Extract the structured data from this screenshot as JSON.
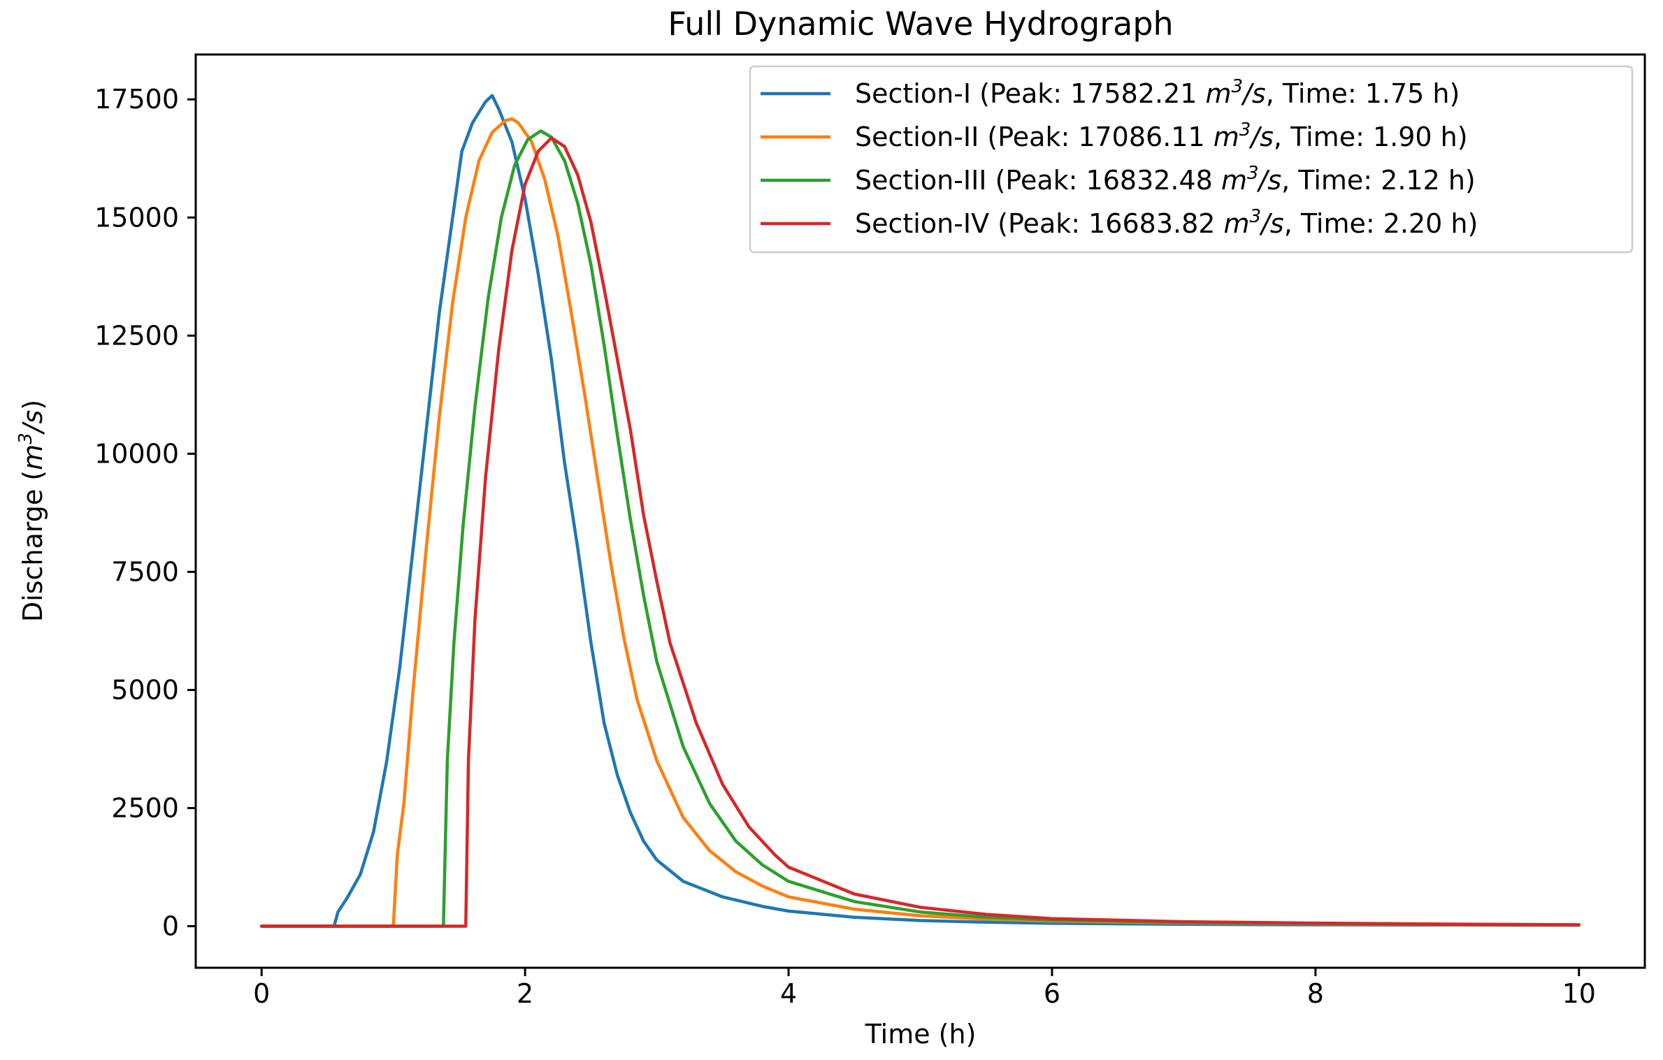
{
  "chart_data": {
    "type": "line",
    "title": "Full Dynamic Wave Hydrograph",
    "xlabel": "Time (h)",
    "ylabel_prefix": "Discharge (",
    "ylabel_unit_base": "m",
    "ylabel_unit_exp": "3",
    "ylabel_unit_tail": "/s",
    "ylabel_suffix": ")",
    "xlim": [
      -0.5,
      10.5
    ],
    "ylim": [
      -880,
      18450
    ],
    "xticks": [
      0,
      2,
      4,
      6,
      8,
      10
    ],
    "xtick_labels": [
      "0",
      "2",
      "4",
      "6",
      "8",
      "10"
    ],
    "yticks": [
      0,
      2500,
      5000,
      7500,
      10000,
      12500,
      15000,
      17500
    ],
    "ytick_labels": [
      "0",
      "2500",
      "5000",
      "7500",
      "10000",
      "12500",
      "15000",
      "17500"
    ],
    "grid": false,
    "legend_placement": "top-right",
    "series": [
      {
        "name": "Section-I (Peak: 17582.21 m³/s, Time: 1.75 h)",
        "legend_parts": {
          "pre": "Section-I (Peak: 17582.21 ",
          "m": "m",
          "exp": "3",
          "s": "/s",
          "post": ", Time: 1.75 h)"
        },
        "color": "#1f77b4",
        "points": [
          [
            0,
            0
          ],
          [
            0.55,
            0
          ],
          [
            0.58,
            300
          ],
          [
            0.65,
            600
          ],
          [
            0.75,
            1100
          ],
          [
            0.85,
            2000
          ],
          [
            0.95,
            3500
          ],
          [
            1.05,
            5500
          ],
          [
            1.15,
            8000
          ],
          [
            1.25,
            10500
          ],
          [
            1.35,
            13000
          ],
          [
            1.45,
            15000
          ],
          [
            1.52,
            16400
          ],
          [
            1.6,
            17000
          ],
          [
            1.7,
            17450
          ],
          [
            1.75,
            17582
          ],
          [
            1.8,
            17300
          ],
          [
            1.9,
            16600
          ],
          [
            2.0,
            15400
          ],
          [
            2.1,
            13800
          ],
          [
            2.2,
            12000
          ],
          [
            2.3,
            9800
          ],
          [
            2.4,
            8000
          ],
          [
            2.5,
            6000
          ],
          [
            2.6,
            4300
          ],
          [
            2.7,
            3200
          ],
          [
            2.8,
            2400
          ],
          [
            2.9,
            1800
          ],
          [
            3.0,
            1400
          ],
          [
            3.2,
            950
          ],
          [
            3.5,
            620
          ],
          [
            3.8,
            420
          ],
          [
            4.0,
            320
          ],
          [
            4.5,
            190
          ],
          [
            5.0,
            120
          ],
          [
            5.5,
            85
          ],
          [
            6.0,
            60
          ],
          [
            7.0,
            40
          ],
          [
            8.0,
            30
          ],
          [
            9.0,
            25
          ],
          [
            10.0,
            20
          ]
        ]
      },
      {
        "name": "Section-II (Peak: 17086.11 m³/s, Time: 1.90 h)",
        "legend_parts": {
          "pre": "Section-II (Peak: 17086.11 ",
          "m": "m",
          "exp": "3",
          "s": "/s",
          "post": ", Time: 1.90 h)"
        },
        "color": "#ff7f0e",
        "points": [
          [
            0,
            0
          ],
          [
            1.0,
            0
          ],
          [
            1.03,
            1500
          ],
          [
            1.08,
            2600
          ],
          [
            1.15,
            5000
          ],
          [
            1.25,
            8000
          ],
          [
            1.35,
            10800
          ],
          [
            1.45,
            13200
          ],
          [
            1.55,
            15000
          ],
          [
            1.65,
            16200
          ],
          [
            1.75,
            16800
          ],
          [
            1.85,
            17050
          ],
          [
            1.9,
            17086
          ],
          [
            1.95,
            17000
          ],
          [
            2.05,
            16600
          ],
          [
            2.15,
            15800
          ],
          [
            2.25,
            14600
          ],
          [
            2.35,
            13000
          ],
          [
            2.45,
            11300
          ],
          [
            2.55,
            9500
          ],
          [
            2.65,
            7700
          ],
          [
            2.75,
            6100
          ],
          [
            2.85,
            4800
          ],
          [
            3.0,
            3500
          ],
          [
            3.2,
            2300
          ],
          [
            3.4,
            1600
          ],
          [
            3.6,
            1150
          ],
          [
            3.8,
            850
          ],
          [
            4.0,
            620
          ],
          [
            4.5,
            360
          ],
          [
            5.0,
            220
          ],
          [
            5.5,
            150
          ],
          [
            6.0,
            110
          ],
          [
            7.0,
            70
          ],
          [
            8.0,
            50
          ],
          [
            9.0,
            35
          ],
          [
            10.0,
            25
          ]
        ]
      },
      {
        "name": "Section-III (Peak: 16832.48 m³/s, Time: 2.12 h)",
        "legend_parts": {
          "pre": "Section-III (Peak: 16832.48 ",
          "m": "m",
          "exp": "3",
          "s": "/s",
          "post": ", Time: 2.12 h)"
        },
        "color": "#2ca02c",
        "points": [
          [
            0,
            0
          ],
          [
            1.38,
            0
          ],
          [
            1.41,
            3500
          ],
          [
            1.46,
            6000
          ],
          [
            1.53,
            8500
          ],
          [
            1.62,
            11000
          ],
          [
            1.72,
            13300
          ],
          [
            1.82,
            15000
          ],
          [
            1.92,
            16100
          ],
          [
            2.02,
            16650
          ],
          [
            2.12,
            16832
          ],
          [
            2.2,
            16700
          ],
          [
            2.3,
            16200
          ],
          [
            2.4,
            15300
          ],
          [
            2.5,
            14000
          ],
          [
            2.6,
            12300
          ],
          [
            2.7,
            10400
          ],
          [
            2.8,
            8600
          ],
          [
            2.9,
            7000
          ],
          [
            3.0,
            5600
          ],
          [
            3.2,
            3800
          ],
          [
            3.4,
            2600
          ],
          [
            3.6,
            1800
          ],
          [
            3.8,
            1300
          ],
          [
            4.0,
            950
          ],
          [
            4.5,
            520
          ],
          [
            5.0,
            300
          ],
          [
            5.5,
            190
          ],
          [
            6.0,
            130
          ],
          [
            7.0,
            80
          ],
          [
            8.0,
            55
          ],
          [
            9.0,
            40
          ],
          [
            10.0,
            28
          ]
        ]
      },
      {
        "name": "Section-IV (Peak: 16683.82 m³/s, Time: 2.20 h)",
        "legend_parts": {
          "pre": "Section-IV (Peak: 16683.82 ",
          "m": "m",
          "exp": "3",
          "s": "/s",
          "post": ", Time: 2.20 h)"
        },
        "color": "#d62728",
        "points": [
          [
            0,
            0
          ],
          [
            1.55,
            0
          ],
          [
            1.57,
            3500
          ],
          [
            1.62,
            6500
          ],
          [
            1.7,
            9500
          ],
          [
            1.8,
            12200
          ],
          [
            1.9,
            14300
          ],
          [
            2.0,
            15700
          ],
          [
            2.1,
            16400
          ],
          [
            2.2,
            16684
          ],
          [
            2.3,
            16500
          ],
          [
            2.4,
            15900
          ],
          [
            2.5,
            14900
          ],
          [
            2.6,
            13500
          ],
          [
            2.7,
            12000
          ],
          [
            2.8,
            10500
          ],
          [
            2.9,
            8700
          ],
          [
            3.0,
            7300
          ],
          [
            3.1,
            6000
          ],
          [
            3.3,
            4300
          ],
          [
            3.5,
            3000
          ],
          [
            3.7,
            2100
          ],
          [
            3.9,
            1500
          ],
          [
            4.0,
            1250
          ],
          [
            4.5,
            680
          ],
          [
            5.0,
            400
          ],
          [
            5.5,
            250
          ],
          [
            6.0,
            160
          ],
          [
            7.0,
            95
          ],
          [
            8.0,
            65
          ],
          [
            9.0,
            45
          ],
          [
            10.0,
            30
          ]
        ]
      }
    ]
  }
}
